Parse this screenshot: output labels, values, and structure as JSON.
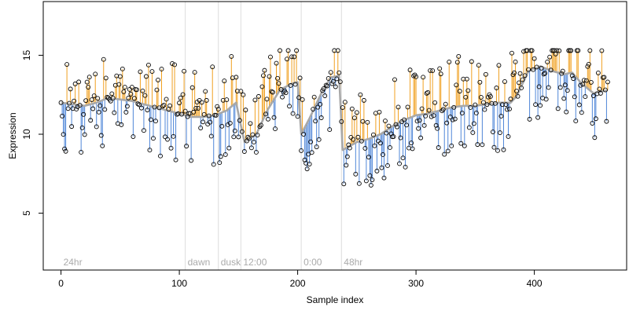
{
  "chart_data": {
    "type": "scatter",
    "title": "",
    "xlabel": "Sample index",
    "ylabel": "Expression",
    "xlim": [
      -15,
      478
    ],
    "ylim": [
      1.4,
      18.4
    ],
    "x_ticks": [
      0,
      100,
      200,
      300,
      400
    ],
    "y_ticks": [
      5,
      10,
      15
    ],
    "grid": false,
    "legend": "none",
    "colors": {
      "above_line": "#f0a020",
      "below_line": "#4f86d8",
      "trend_line": "#a8a8a8",
      "point_edge": "#000000",
      "marker_line": "#dcdcdc",
      "marker_text": "#aaaaaa"
    },
    "markers": [
      {
        "x": 0,
        "label": "24hr"
      },
      {
        "x": 105,
        "label": "dawn"
      },
      {
        "x": 133,
        "label": "dusk"
      },
      {
        "x": 152,
        "label": "12:00"
      },
      {
        "x": 203,
        "label": "0:00"
      },
      {
        "x": 237,
        "label": "48hr"
      }
    ],
    "trend_knots": [
      [
        0,
        12.0
      ],
      [
        10,
        11.9
      ],
      [
        20,
        11.8
      ],
      [
        30,
        12.0
      ],
      [
        40,
        12.3
      ],
      [
        50,
        12.2
      ],
      [
        60,
        12.1
      ],
      [
        70,
        11.9
      ],
      [
        80,
        11.7
      ],
      [
        90,
        11.5
      ],
      [
        100,
        11.3
      ],
      [
        110,
        11.1
      ],
      [
        120,
        11.1
      ],
      [
        130,
        11.2
      ],
      [
        140,
        11.5
      ],
      [
        148,
        12.0
      ],
      [
        155,
        9.5
      ],
      [
        165,
        10.0
      ],
      [
        175,
        11.6
      ],
      [
        185,
        12.8
      ],
      [
        195,
        13.2
      ],
      [
        200,
        13.3
      ],
      [
        203,
        10.0
      ],
      [
        210,
        11.0
      ],
      [
        220,
        12.6
      ],
      [
        228,
        13.6
      ],
      [
        235,
        13.7
      ],
      [
        238,
        9.0
      ],
      [
        250,
        9.5
      ],
      [
        260,
        9.7
      ],
      [
        270,
        10.0
      ],
      [
        280,
        10.5
      ],
      [
        290,
        10.9
      ],
      [
        300,
        11.2
      ],
      [
        310,
        11.3
      ],
      [
        320,
        11.5
      ],
      [
        330,
        11.7
      ],
      [
        340,
        11.8
      ],
      [
        350,
        11.8
      ],
      [
        360,
        11.9
      ],
      [
        370,
        12.0
      ],
      [
        380,
        12.0
      ],
      [
        385,
        12.4
      ],
      [
        395,
        14.0
      ],
      [
        405,
        14.3
      ],
      [
        415,
        14.0
      ],
      [
        425,
        13.8
      ],
      [
        432,
        13.9
      ],
      [
        440,
        13.2
      ],
      [
        450,
        12.6
      ],
      [
        462,
        12.8
      ]
    ]
  }
}
